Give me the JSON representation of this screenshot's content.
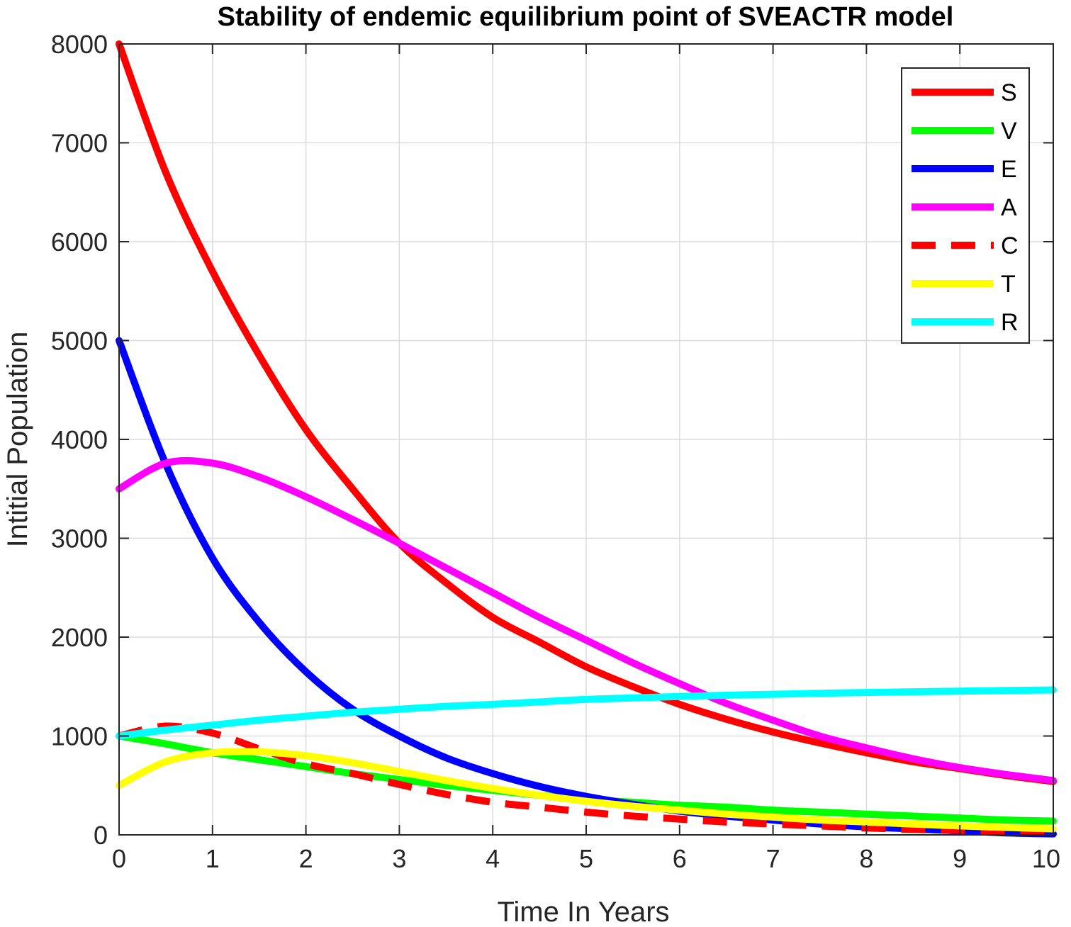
{
  "chart_data": {
    "type": "line",
    "title": "Stability of endemic equilibrium point of SVEACTR model",
    "xlabel": "Time In Years",
    "ylabel": "Intitial Population",
    "xlim": [
      0,
      10
    ],
    "ylim": [
      0,
      8000
    ],
    "xticks": [
      0,
      1,
      2,
      3,
      4,
      5,
      6,
      7,
      8,
      9,
      10
    ],
    "yticks": [
      0,
      1000,
      2000,
      3000,
      4000,
      5000,
      6000,
      7000,
      8000
    ],
    "xtick_labels": [
      "0",
      "1",
      "2",
      "3",
      "4",
      "5",
      "6",
      "7",
      "8",
      "9",
      "10"
    ],
    "ytick_labels": [
      "0",
      "1000",
      "2000",
      "3000",
      "4000",
      "5000",
      "6000",
      "7000",
      "8000"
    ],
    "grid": true,
    "legend_position": "top-right",
    "x": [
      0,
      0.5,
      1,
      1.5,
      2,
      2.5,
      3,
      3.5,
      4,
      4.5,
      5,
      5.5,
      6,
      6.5,
      7,
      7.5,
      8,
      8.5,
      9,
      9.5,
      10
    ],
    "series": [
      {
        "name": "S",
        "color": "#ff0000",
        "dash": "solid",
        "values": [
          8000,
          6700,
          5700,
          4850,
          4100,
          3500,
          2950,
          2550,
          2200,
          1950,
          1700,
          1500,
          1320,
          1170,
          1040,
          930,
          830,
          740,
          670,
          600,
          540
        ]
      },
      {
        "name": "V",
        "color": "#00ff00",
        "dash": "solid",
        "values": [
          1000,
          920,
          830,
          760,
          690,
          620,
          560,
          500,
          450,
          400,
          360,
          330,
          300,
          280,
          250,
          230,
          210,
          190,
          170,
          150,
          140
        ]
      },
      {
        "name": "E",
        "color": "#0000ff",
        "dash": "solid",
        "values": [
          5000,
          3750,
          2800,
          2150,
          1650,
          1270,
          1000,
          780,
          620,
          490,
          390,
          310,
          240,
          190,
          150,
          110,
          80,
          60,
          40,
          20,
          10
        ]
      },
      {
        "name": "A",
        "color": "#ff00ff",
        "dash": "solid",
        "values": [
          3500,
          3760,
          3760,
          3620,
          3420,
          3190,
          2950,
          2700,
          2450,
          2200,
          1970,
          1740,
          1530,
          1330,
          1160,
          1000,
          880,
          770,
          680,
          610,
          550
        ]
      },
      {
        "name": "C",
        "color": "#ff0000",
        "dash": "dashed",
        "values": [
          1000,
          1100,
          1030,
          870,
          720,
          620,
          510,
          410,
          330,
          280,
          230,
          190,
          160,
          130,
          110,
          90,
          70,
          55,
          45,
          35,
          25
        ]
      },
      {
        "name": "T",
        "color": "#ffff00",
        "dash": "solid",
        "values": [
          500,
          740,
          830,
          840,
          800,
          730,
          640,
          550,
          470,
          400,
          340,
          290,
          250,
          210,
          180,
          150,
          130,
          110,
          90,
          75,
          60
        ]
      },
      {
        "name": "R",
        "color": "#00ffff",
        "dash": "solid",
        "values": [
          1000,
          1060,
          1110,
          1160,
          1200,
          1240,
          1270,
          1300,
          1320,
          1345,
          1370,
          1385,
          1400,
          1412,
          1422,
          1432,
          1440,
          1447,
          1454,
          1460,
          1466
        ]
      }
    ]
  }
}
